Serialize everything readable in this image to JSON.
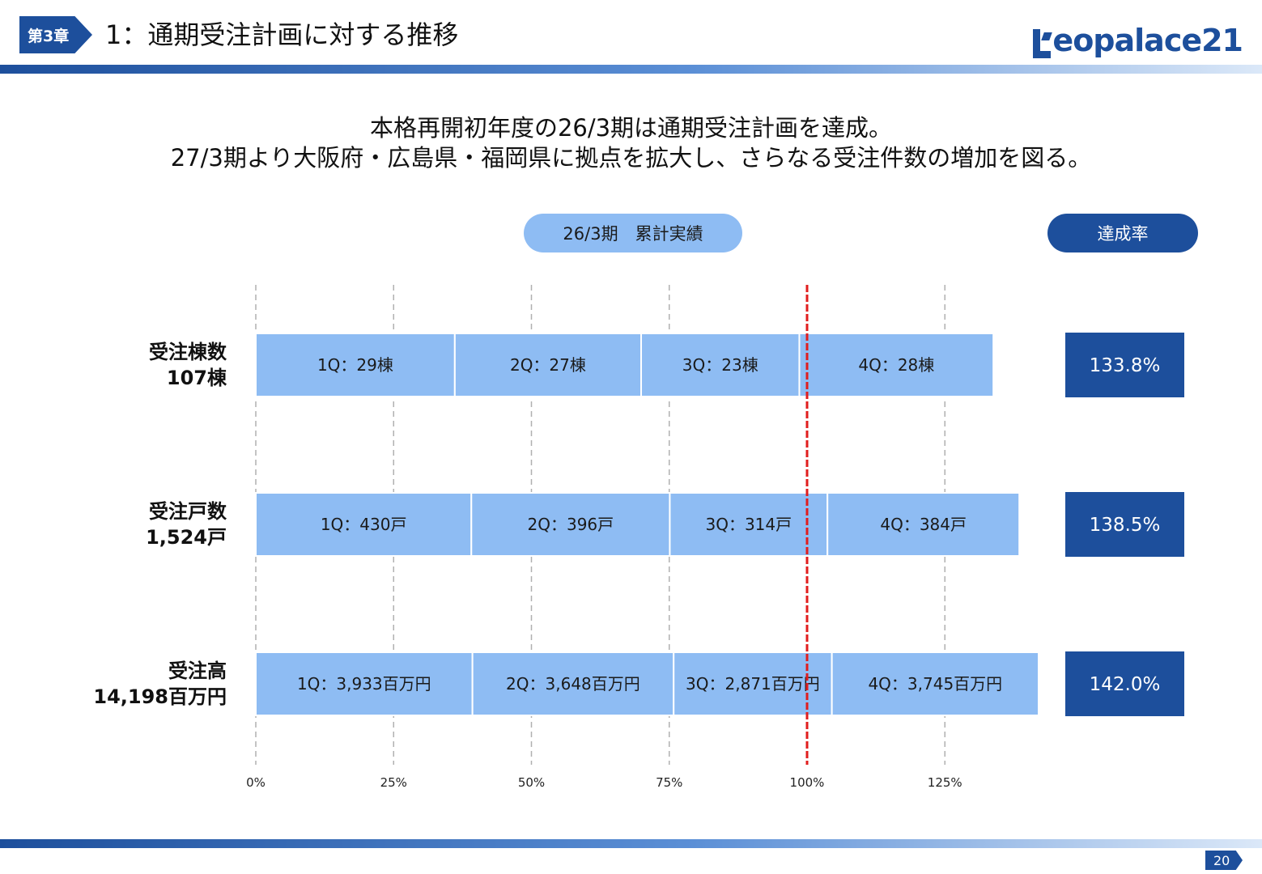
{
  "header": {
    "chapter_tag": "第3章",
    "title": "1：通期受注計画に対する推移",
    "logo_text": "eopalace21"
  },
  "headline": {
    "line1": "本格再開初年度の26/3期は通期受注計画を達成。",
    "line2": "27/3期より大阪府・広島県・福岡県に拠点を拡大し、さらなる受注件数の増加を図る。"
  },
  "pills": {
    "results_label": "26/3期　累計実績",
    "rate_label": "達成率"
  },
  "colors": {
    "brand": "#1d4f9c",
    "bar": "#8ebcf3",
    "target_line": "#e11d1d",
    "grid": "#b0b0b0"
  },
  "chart_data": {
    "type": "bar",
    "orientation": "horizontal",
    "stacked": true,
    "x_unit": "percent of annual plan",
    "xlim": [
      0,
      140
    ],
    "x_ticks": [
      0,
      25,
      50,
      75,
      100,
      125
    ],
    "x_tick_labels": [
      "0%",
      "25%",
      "50%",
      "75%",
      "100%",
      "125%"
    ],
    "target_line": 100,
    "grid": true,
    "rows": [
      {
        "label_line1": "受注棟数",
        "label_line2": "107棟",
        "achievement": "133.8%",
        "segments": [
          {
            "label": "1Q：29棟",
            "value": 36.1
          },
          {
            "label": "2Q：27棟",
            "value": 33.8
          },
          {
            "label": "3Q：23棟",
            "value": 28.7
          },
          {
            "label": "4Q：28棟",
            "value": 35.2
          }
        ]
      },
      {
        "label_line1": "受注戸数",
        "label_line2": "1,524戸",
        "achievement": "138.5%",
        "segments": [
          {
            "label": "1Q：430戸",
            "value": 39.1
          },
          {
            "label": "2Q：396戸",
            "value": 36.0
          },
          {
            "label": "3Q：314戸",
            "value": 28.6
          },
          {
            "label": "4Q：384戸",
            "value": 34.8
          }
        ]
      },
      {
        "label_line1": "受注高",
        "label_line2": "14,198百万円",
        "achievement": "142.0%",
        "segments": [
          {
            "label": "1Q：3,933百万円",
            "value": 39.3
          },
          {
            "label": "2Q：3,648百万円",
            "value": 36.5
          },
          {
            "label": "3Q：2,871百万円",
            "value": 28.7
          },
          {
            "label": "4Q：3,745百万円",
            "value": 37.5
          }
        ]
      }
    ]
  },
  "footer": {
    "page_number": "20"
  }
}
